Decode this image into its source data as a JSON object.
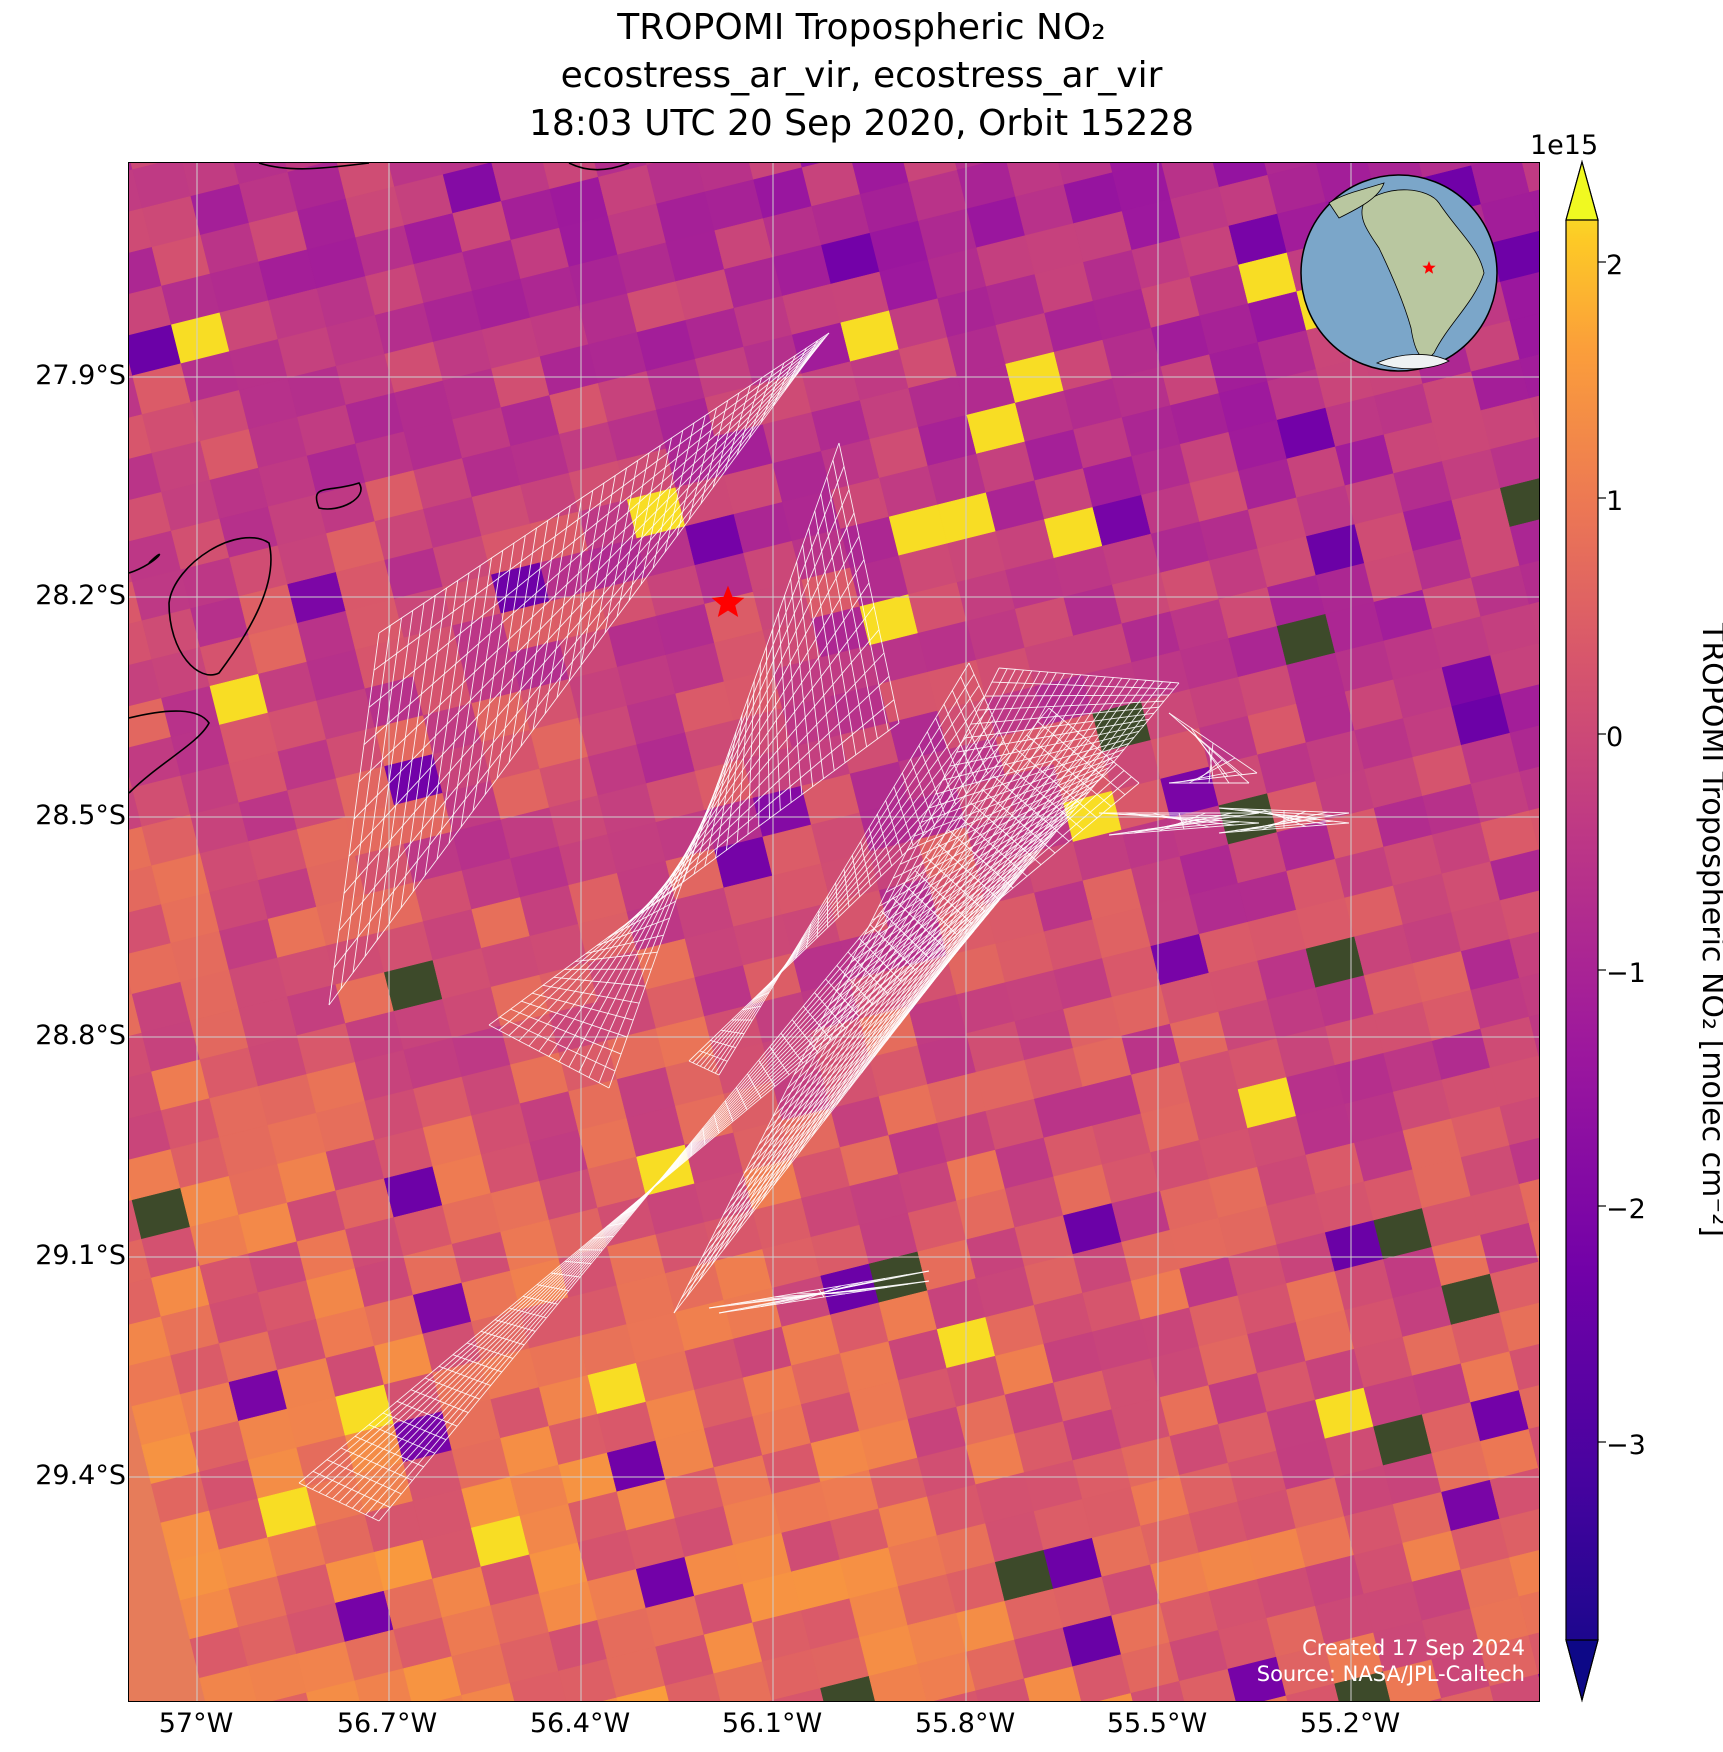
{
  "title": {
    "line1": "TROPOMI Tropospheric NO₂",
    "line2": "ecostress_ar_vir, ecostress_ar_vir",
    "line3": "18:03 UTC 20 Sep 2020, Orbit 15228"
  },
  "map": {
    "y_axis_labels": [
      "27.9°S",
      "28.2°S",
      "28.5°S",
      "28.8°S",
      "29.1°S",
      "29.4°S"
    ],
    "x_axis_labels": [
      "57°W",
      "56.7°W",
      "56.4°W",
      "56.1°W",
      "55.8°W",
      "55.5°W",
      "55.2°W"
    ],
    "gridlines": true,
    "background_colormap": "plasma",
    "target_marker": {
      "lon": -56.12,
      "lat": -28.24,
      "color": "#ff0000"
    },
    "inset_globe": {
      "position": "top-right",
      "description": "globe centered on South America with red star"
    },
    "credit": {
      "line1": "Created 17 Sep 2024",
      "line2": "Source: NASA/JPL-Caltech"
    }
  },
  "colorbar": {
    "label": "TROPOMI Tropospheric NO₂ [molec cm⁻²]",
    "exponent": "1e15",
    "tick_labels": [
      "2",
      "1",
      "0",
      "−1",
      "−2",
      "−3"
    ],
    "range": [
      -3.8,
      2.2
    ],
    "colormap": "plasma",
    "extend": "both"
  }
}
